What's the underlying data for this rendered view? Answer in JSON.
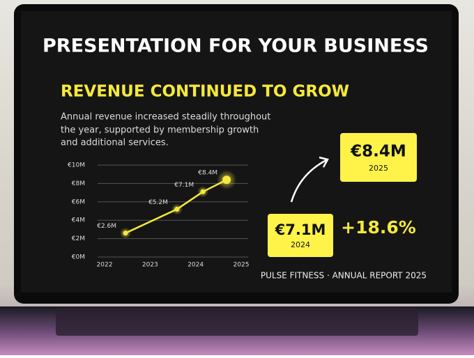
{
  "header": {
    "title": "PRESENTATION FOR YOUR BUSINESS"
  },
  "slide": {
    "title": "REVENUE CONTINUED TO GROW",
    "description": [
      "Annual revenue increased steadily throughout",
      "the year, supported by membership growth",
      "and additional services."
    ],
    "kpis": [
      {
        "value": "€8.4M",
        "year": "2025"
      },
      {
        "value": "€7.1M",
        "year": "2024"
      }
    ],
    "growth": "+18.6%",
    "footer": "PULSE FITNESS · ANNUAL REPORT 2025"
  },
  "chart_data": {
    "type": "line",
    "x": [
      2022.46,
      2023.59,
      2024.16,
      2024.68
    ],
    "series": [
      {
        "color": "#f5e93a",
        "values": [
          2.6,
          5.2,
          7.1,
          8.4
        ],
        "value_labels": [
          "€2.6M",
          "€5.2M",
          "€7.1M",
          "€8.4M"
        ]
      }
    ],
    "xlim": [
      2022,
      2025
    ],
    "xticks": [
      2022,
      2023,
      2024,
      2025
    ],
    "ylim": [
      0,
      10
    ],
    "yticks": [
      {
        "value": 0,
        "label": "€0M"
      },
      {
        "value": 2,
        "label": "€2M"
      },
      {
        "value": 4,
        "label": "€4M"
      },
      {
        "value": 6,
        "label": "€6M"
      },
      {
        "value": 8,
        "label": "€8M"
      },
      {
        "value": 10,
        "label": "€10M"
      }
    ],
    "grid": true
  }
}
